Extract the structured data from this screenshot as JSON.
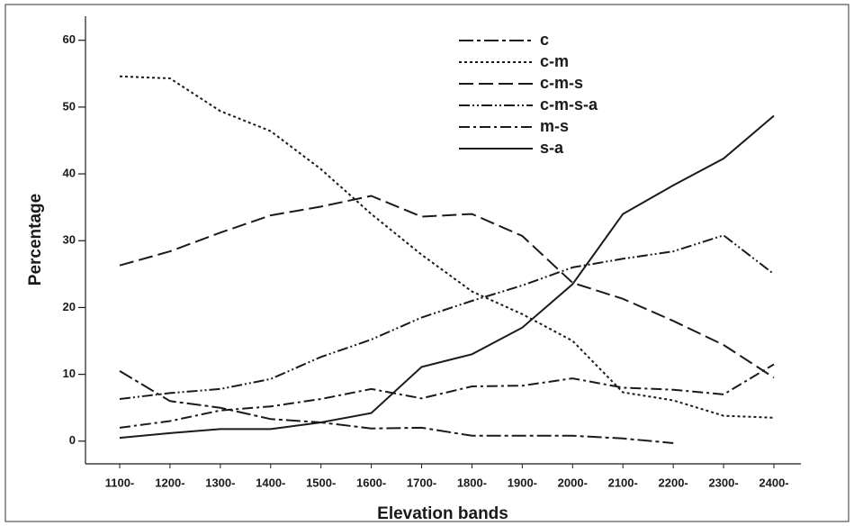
{
  "chart_data": {
    "type": "line",
    "x_label": "Elevation bands",
    "y_label": "Percentage",
    "categories": [
      "1100-",
      "1200-",
      "1300-",
      "1400-",
      "1500-",
      "1600-",
      "1700-",
      "1800-",
      "1900-",
      "2000-",
      "2100-",
      "2200-",
      "2300-",
      "2400-"
    ],
    "series": [
      {
        "name": "c",
        "color": "#1a1a1a",
        "values": [
          10.5,
          6,
          5,
          3.3,
          2.8,
          1.9,
          2,
          0.8,
          0.8,
          0.8,
          0.4,
          -0.3,
          null,
          null
        ]
      },
      {
        "name": "c-m",
        "color": "#1a1a1a",
        "values": [
          54.6,
          54.3,
          49.4,
          46.4,
          40.7,
          34,
          27.9,
          22.4,
          19,
          15,
          7.3,
          6.1,
          3.8,
          3.5
        ]
      },
      {
        "name": "c-m-s",
        "color": "#1a1a1a",
        "values": [
          26.3,
          28.4,
          31.2,
          33.8,
          35.1,
          36.7,
          33.6,
          34,
          30.7,
          23.7,
          21.3,
          18,
          14.4,
          9.5
        ]
      },
      {
        "name": "c-m-s-a",
        "color": "#1a1a1a",
        "values": [
          6.3,
          7.2,
          7.8,
          9.3,
          12.6,
          15.2,
          18.5,
          21,
          23.3,
          26,
          27.3,
          28.4,
          30.8,
          25
        ]
      },
      {
        "name": "m-s",
        "color": "#1a1a1a",
        "values": [
          2,
          3,
          4.6,
          5.2,
          6.3,
          7.8,
          6.4,
          8.2,
          8.3,
          9.4,
          8,
          7.7,
          7,
          11.5
        ]
      },
      {
        "name": "s-a",
        "color": "#1a1a1a",
        "values": [
          0.5,
          1.2,
          1.8,
          1.8,
          2.8,
          4.2,
          11.1,
          13,
          17,
          23.5,
          34,
          38.3,
          42.3,
          48.7
        ]
      }
    ],
    "ylim": [
      -3.4,
      63.6
    ],
    "yticks": [
      0,
      10,
      20,
      30,
      40,
      50,
      60
    ],
    "grid": false,
    "legend": "top"
  }
}
